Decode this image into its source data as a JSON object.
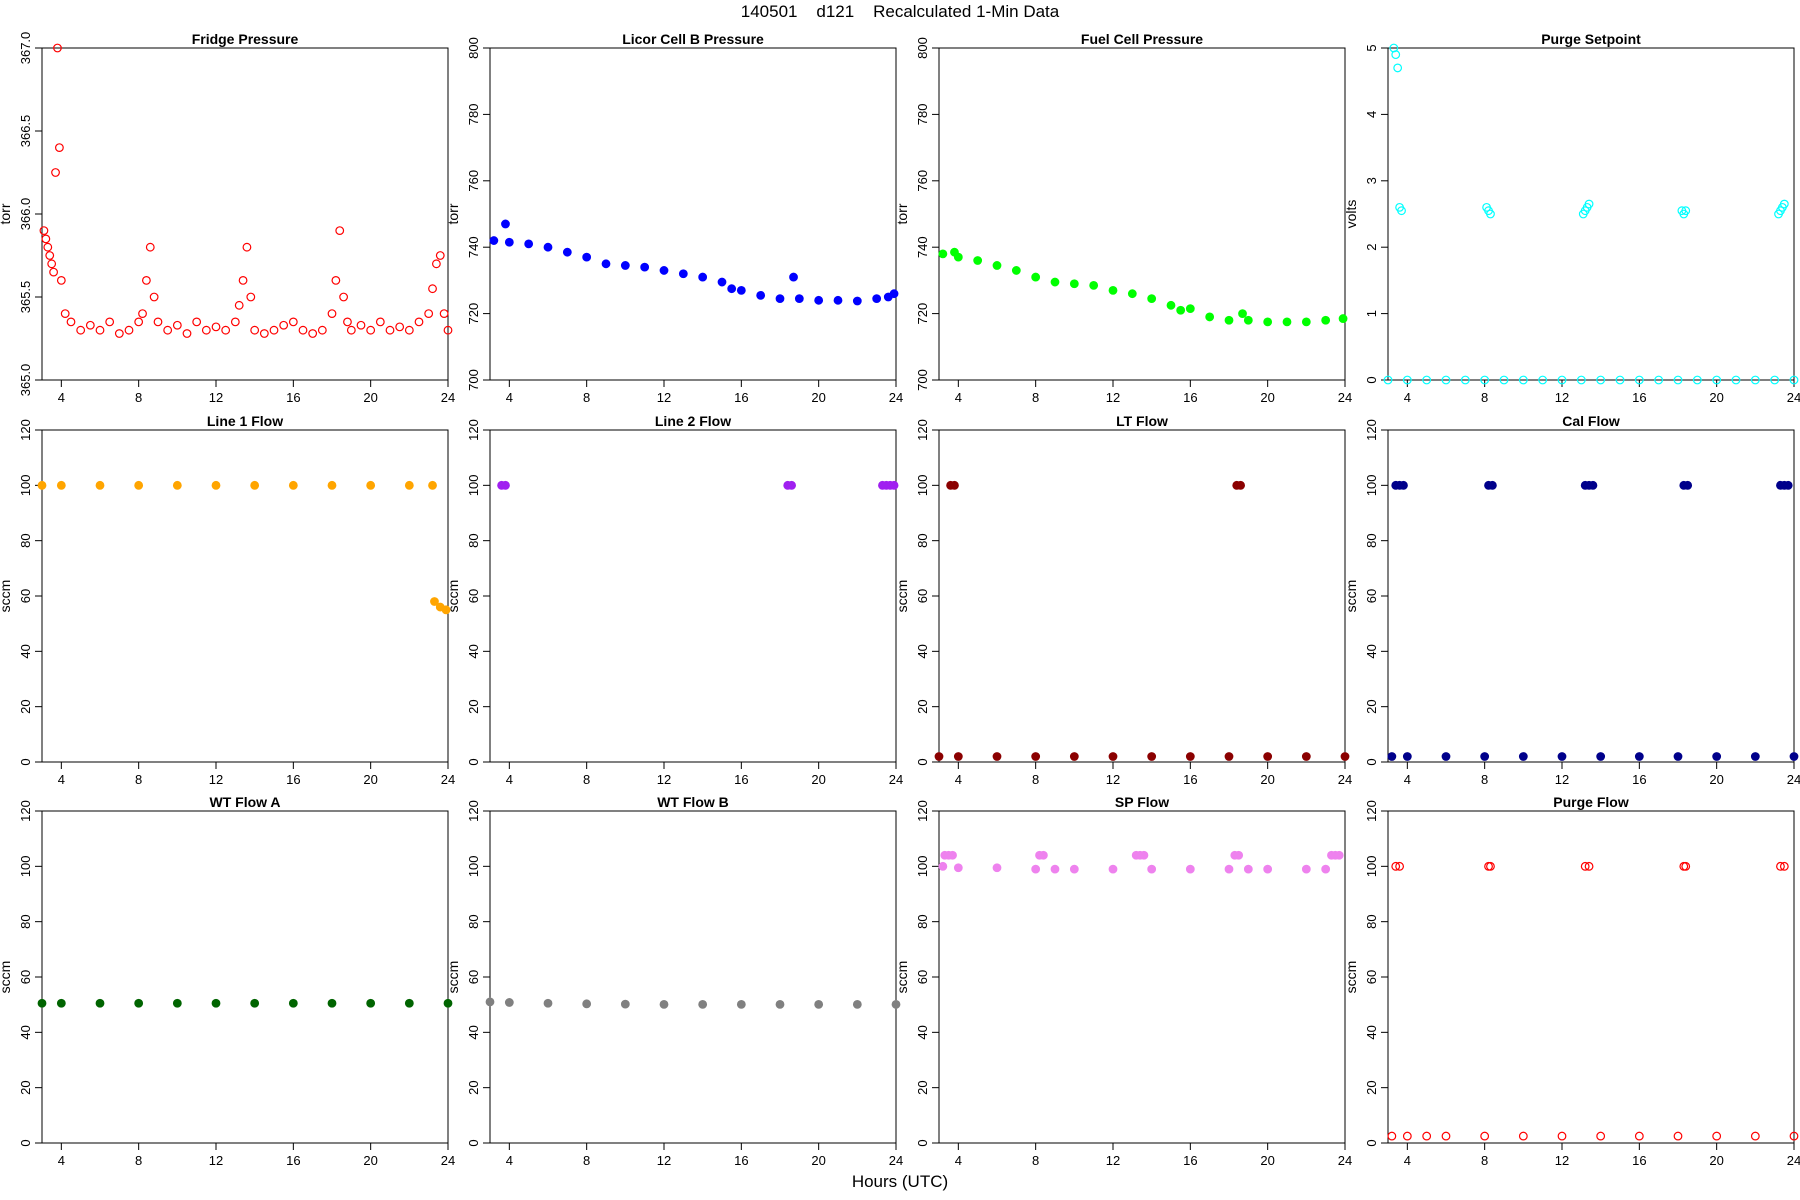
{
  "page": {
    "title": "140501    d121    Recalculated 1-Min Data",
    "xlabel": "Hours (UTC)"
  },
  "chart_data": [
    {
      "type": "scatter",
      "title": "Fridge Pressure",
      "ylabel": "torr",
      "color": "#ff0000",
      "marker": "open",
      "xlim": [
        3,
        24
      ],
      "xticks": [
        4,
        8,
        12,
        16,
        20,
        24
      ],
      "ylim": [
        365.0,
        367.0
      ],
      "yticks": [
        365.0,
        365.5,
        366.0,
        366.5,
        367.0
      ],
      "ytick_labels": [
        "365.0",
        "365.5",
        "366.0",
        "366.5",
        "367.0"
      ],
      "series": [
        {
          "x": [
            3.1,
            3.2,
            3.3,
            3.4,
            3.5,
            3.6,
            3.7,
            3.8,
            3.9,
            4.0,
            4.2,
            4.5,
            5.0,
            5.5,
            6.0,
            6.5,
            7.0,
            7.5,
            8.0,
            8.2,
            8.4,
            8.6,
            8.8,
            9.0,
            9.5,
            10.0,
            10.5,
            11.0,
            11.5,
            12.0,
            12.5,
            13.0,
            13.2,
            13.4,
            13.6,
            13.8,
            14.0,
            14.5,
            15.0,
            15.5,
            16.0,
            16.5,
            17.0,
            17.5,
            18.0,
            18.2,
            18.4,
            18.6,
            18.8,
            19.0,
            19.5,
            20.0,
            20.5,
            21.0,
            21.5,
            22.0,
            22.5,
            23.0,
            23.2,
            23.4,
            23.6,
            23.8,
            24.0
          ],
          "y": [
            365.9,
            365.85,
            365.8,
            365.75,
            365.7,
            365.65,
            366.25,
            367.0,
            366.4,
            365.6,
            365.4,
            365.35,
            365.3,
            365.33,
            365.3,
            365.35,
            365.28,
            365.3,
            365.35,
            365.4,
            365.6,
            365.8,
            365.5,
            365.35,
            365.3,
            365.33,
            365.28,
            365.35,
            365.3,
            365.32,
            365.3,
            365.35,
            365.45,
            365.6,
            365.8,
            365.5,
            365.3,
            365.28,
            365.3,
            365.33,
            365.35,
            365.3,
            365.28,
            365.3,
            365.4,
            365.6,
            365.9,
            365.5,
            365.35,
            365.3,
            365.33,
            365.3,
            365.35,
            365.3,
            365.32,
            365.3,
            365.35,
            365.4,
            365.55,
            365.7,
            365.75,
            365.4,
            365.3
          ]
        }
      ]
    },
    {
      "type": "scatter",
      "title": "Licor Cell B Pressure",
      "ylabel": "torr",
      "color": "#0000ff",
      "marker": "filled",
      "xlim": [
        3,
        24
      ],
      "xticks": [
        4,
        8,
        12,
        16,
        20,
        24
      ],
      "ylim": [
        700,
        800
      ],
      "yticks": [
        700,
        720,
        740,
        760,
        780,
        800
      ],
      "ytick_labels": [
        "700",
        "720",
        "740",
        "760",
        "780",
        "800"
      ],
      "series": [
        {
          "x": [
            3.2,
            3.8,
            4,
            5,
            6,
            7,
            8,
            9,
            10,
            11,
            12,
            13,
            14,
            15,
            15.5,
            16,
            17,
            18,
            18.7,
            19,
            20,
            21,
            22,
            23,
            23.6,
            23.9
          ],
          "y": [
            742,
            747,
            741.5,
            741,
            740,
            738.5,
            737,
            735,
            734.5,
            734,
            733,
            732,
            731,
            729.5,
            727.5,
            727,
            725.5,
            724.5,
            731,
            724.5,
            724,
            724,
            723.8,
            724.5,
            725,
            726
          ]
        }
      ]
    },
    {
      "type": "scatter",
      "title": "Fuel Cell Pressure",
      "ylabel": "torr",
      "color": "#00ff00",
      "marker": "filled",
      "xlim": [
        3,
        24
      ],
      "xticks": [
        4,
        8,
        12,
        16,
        20,
        24
      ],
      "ylim": [
        700,
        800
      ],
      "yticks": [
        700,
        720,
        740,
        760,
        780,
        800
      ],
      "ytick_labels": [
        "700",
        "720",
        "740",
        "760",
        "780",
        "800"
      ],
      "series": [
        {
          "x": [
            3.2,
            3.8,
            4,
            5,
            6,
            7,
            8,
            9,
            10,
            11,
            12,
            13,
            14,
            15,
            15.5,
            16,
            17,
            18,
            18.7,
            19,
            20,
            21,
            22,
            23,
            23.9
          ],
          "y": [
            738,
            738.5,
            737,
            736,
            734.5,
            733,
            731,
            729.5,
            729,
            728.5,
            727,
            726,
            724.5,
            722.5,
            721,
            721.5,
            719,
            718,
            720,
            718,
            717.5,
            717.5,
            717.5,
            718,
            718.5
          ]
        }
      ]
    },
    {
      "type": "scatter",
      "title": "Purge Setpoint",
      "ylabel": "volts",
      "color": "#00ffff",
      "marker": "open",
      "xlim": [
        3,
        24
      ],
      "xticks": [
        4,
        8,
        12,
        16,
        20,
        24
      ],
      "ylim": [
        0,
        5
      ],
      "yticks": [
        0,
        1,
        2,
        3,
        4,
        5
      ],
      "ytick_labels": [
        "0",
        "1",
        "2",
        "3",
        "4",
        "5"
      ],
      "series": [
        {
          "x": [
            3.3,
            3.4,
            3.5,
            3.6,
            3.7,
            8.1,
            8.2,
            8.3,
            13.1,
            13.2,
            13.3,
            13.4,
            18.2,
            18.3,
            18.4,
            23.2,
            23.3,
            23.4,
            23.5,
            3,
            4,
            5,
            6,
            7,
            8,
            9,
            10,
            11,
            12,
            13,
            14,
            15,
            16,
            17,
            18,
            19,
            20,
            21,
            22,
            23,
            24
          ],
          "y": [
            5.0,
            4.9,
            4.7,
            2.6,
            2.55,
            2.6,
            2.55,
            2.5,
            2.5,
            2.55,
            2.6,
            2.65,
            2.55,
            2.5,
            2.55,
            2.5,
            2.55,
            2.6,
            2.65,
            0,
            0,
            0,
            0,
            0,
            0,
            0,
            0,
            0,
            0,
            0,
            0,
            0,
            0,
            0,
            0,
            0,
            0,
            0,
            0,
            0,
            0
          ]
        }
      ]
    },
    {
      "type": "scatter",
      "title": "Line 1 Flow",
      "ylabel": "sccm",
      "color": "#ffa500",
      "marker": "filled",
      "xlim": [
        3,
        24
      ],
      "xticks": [
        4,
        8,
        12,
        16,
        20,
        24
      ],
      "ylim": [
        0,
        120
      ],
      "yticks": [
        0,
        20,
        40,
        60,
        80,
        100,
        120
      ],
      "ytick_labels": [
        "0",
        "20",
        "40",
        "60",
        "80",
        "100",
        "120"
      ],
      "series": [
        {
          "x": [
            3,
            4,
            6,
            8,
            10,
            12,
            14,
            16,
            18,
            20,
            22,
            23.2,
            23.3,
            23.6,
            23.9
          ],
          "y": [
            100,
            100,
            100,
            100,
            100,
            100,
            100,
            100,
            100,
            100,
            100,
            100,
            58,
            56,
            55
          ]
        }
      ]
    },
    {
      "type": "scatter",
      "title": "Line 2 Flow",
      "ylabel": "sccm",
      "color": "#a020f0",
      "marker": "filled",
      "xlim": [
        3,
        24
      ],
      "xticks": [
        4,
        8,
        12,
        16,
        20,
        24
      ],
      "ylim": [
        0,
        120
      ],
      "yticks": [
        0,
        20,
        40,
        60,
        80,
        100,
        120
      ],
      "ytick_labels": [
        "0",
        "20",
        "40",
        "60",
        "80",
        "100",
        "120"
      ],
      "series": [
        {
          "x": [
            3.6,
            3.8,
            18.4,
            18.6,
            23.3,
            23.5,
            23.7,
            23.9
          ],
          "y": [
            100,
            100,
            100,
            100,
            100,
            100,
            100,
            100
          ]
        }
      ]
    },
    {
      "type": "scatter",
      "title": "LT Flow",
      "ylabel": "sccm",
      "color": "#8b0000",
      "marker": "filled",
      "xlim": [
        3,
        24
      ],
      "xticks": [
        4,
        8,
        12,
        16,
        20,
        24
      ],
      "ylim": [
        0,
        120
      ],
      "yticks": [
        0,
        20,
        40,
        60,
        80,
        100,
        120
      ],
      "ytick_labels": [
        "0",
        "20",
        "40",
        "60",
        "80",
        "100",
        "120"
      ],
      "series": [
        {
          "x": [
            3.6,
            3.8,
            18.4,
            18.6,
            3,
            4,
            6,
            8,
            10,
            12,
            14,
            16,
            18,
            20,
            22,
            24
          ],
          "y": [
            100,
            100,
            100,
            100,
            2,
            2,
            2,
            2,
            2,
            2,
            2,
            2,
            2,
            2,
            2,
            2
          ]
        }
      ]
    },
    {
      "type": "scatter",
      "title": "Cal Flow",
      "ylabel": "sccm",
      "color": "#00008b",
      "marker": "filled",
      "xlim": [
        3,
        24
      ],
      "xticks": [
        4,
        8,
        12,
        16,
        20,
        24
      ],
      "ylim": [
        0,
        120
      ],
      "yticks": [
        0,
        20,
        40,
        60,
        80,
        100,
        120
      ],
      "ytick_labels": [
        "0",
        "20",
        "40",
        "60",
        "80",
        "100",
        "120"
      ],
      "series": [
        {
          "x": [
            3.4,
            3.6,
            3.8,
            8.2,
            8.4,
            13.2,
            13.4,
            13.6,
            18.3,
            18.5,
            23.3,
            23.5,
            23.7,
            3.2,
            4,
            6,
            8,
            10,
            12,
            14,
            16,
            18,
            20,
            22,
            24
          ],
          "y": [
            100,
            100,
            100,
            100,
            100,
            100,
            100,
            100,
            100,
            100,
            100,
            100,
            100,
            2,
            2,
            2,
            2,
            2,
            2,
            2,
            2,
            2,
            2,
            2,
            2
          ]
        }
      ]
    },
    {
      "type": "scatter",
      "title": "WT Flow A",
      "ylabel": "sccm",
      "color": "#006400",
      "marker": "filled",
      "xlim": [
        3,
        24
      ],
      "xticks": [
        4,
        8,
        12,
        16,
        20,
        24
      ],
      "ylim": [
        0,
        120
      ],
      "yticks": [
        0,
        20,
        40,
        60,
        80,
        100,
        120
      ],
      "ytick_labels": [
        "0",
        "20",
        "40",
        "60",
        "80",
        "100",
        "120"
      ],
      "series": [
        {
          "x": [
            3,
            4,
            6,
            8,
            10,
            12,
            14,
            16,
            18,
            20,
            22,
            24
          ],
          "y": [
            50.5,
            50.5,
            50.5,
            50.5,
            50.5,
            50.5,
            50.5,
            50.5,
            50.5,
            50.5,
            50.5,
            50.5
          ]
        }
      ]
    },
    {
      "type": "scatter",
      "title": "WT Flow B",
      "ylabel": "sccm",
      "color": "#808080",
      "marker": "filled",
      "xlim": [
        3,
        24
      ],
      "xticks": [
        4,
        8,
        12,
        16,
        20,
        24
      ],
      "ylim": [
        0,
        120
      ],
      "yticks": [
        0,
        20,
        40,
        60,
        80,
        100,
        120
      ],
      "ytick_labels": [
        "0",
        "20",
        "40",
        "60",
        "80",
        "100",
        "120"
      ],
      "series": [
        {
          "x": [
            3,
            4,
            6,
            8,
            10,
            12,
            14,
            16,
            18,
            20,
            22,
            24
          ],
          "y": [
            51,
            50.8,
            50.5,
            50.3,
            50.2,
            50.1,
            50.1,
            50.1,
            50.1,
            50.1,
            50.1,
            50.1
          ]
        }
      ]
    },
    {
      "type": "scatter",
      "title": "SP Flow",
      "ylabel": "sccm",
      "color": "#ee82ee",
      "marker": "filled",
      "xlim": [
        3,
        24
      ],
      "xticks": [
        4,
        8,
        12,
        16,
        20,
        24
      ],
      "ylim": [
        0,
        120
      ],
      "yticks": [
        0,
        20,
        40,
        60,
        80,
        100,
        120
      ],
      "ytick_labels": [
        "0",
        "20",
        "40",
        "60",
        "80",
        "100",
        "120"
      ],
      "series": [
        {
          "x": [
            3.3,
            3.5,
            3.7,
            8.2,
            8.4,
            13.2,
            13.4,
            13.6,
            18.3,
            18.5,
            23.3,
            23.5,
            23.7,
            3.2,
            4,
            6,
            8,
            9,
            10,
            12,
            14,
            16,
            18,
            19,
            20,
            22,
            23
          ],
          "y": [
            104,
            104,
            104,
            104,
            104,
            104,
            104,
            104,
            104,
            104,
            104,
            104,
            104,
            100,
            99.5,
            99.5,
            99,
            99,
            99,
            99,
            99,
            99,
            99,
            99,
            99,
            99,
            99
          ]
        }
      ]
    },
    {
      "type": "scatter",
      "title": "Purge Flow",
      "ylabel": "sccm",
      "color": "#ff0000",
      "marker": "open",
      "xlim": [
        3,
        24
      ],
      "xticks": [
        4,
        8,
        12,
        16,
        20,
        24
      ],
      "ylim": [
        0,
        120
      ],
      "yticks": [
        0,
        20,
        40,
        60,
        80,
        100,
        120
      ],
      "ytick_labels": [
        "0",
        "20",
        "40",
        "60",
        "80",
        "100",
        "120"
      ],
      "series": [
        {
          "x": [
            3.4,
            3.6,
            8.2,
            8.3,
            13.2,
            13.4,
            18.3,
            18.4,
            23.3,
            23.5,
            3.2,
            4,
            5,
            6,
            8,
            10,
            12,
            14,
            16,
            18,
            20,
            22,
            24
          ],
          "y": [
            100,
            100,
            100,
            100,
            100,
            100,
            100,
            100,
            100,
            100,
            2.5,
            2.5,
            2.5,
            2.5,
            2.5,
            2.5,
            2.5,
            2.5,
            2.5,
            2.5,
            2.5,
            2.5,
            2.5
          ]
        }
      ]
    }
  ]
}
